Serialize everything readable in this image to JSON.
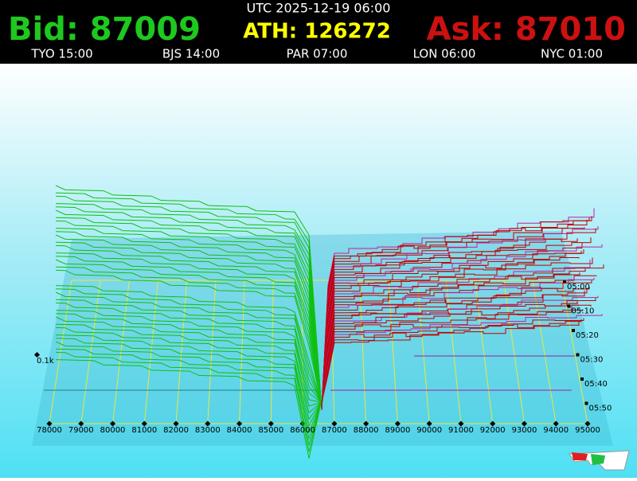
{
  "header": {
    "utc": "UTC 2025-12-19 06:00",
    "bid": "Bid: 87009",
    "ath": "ATH: 126272",
    "ask": "Ask: 87010",
    "clocks": [
      "TYO 15:00",
      "BJS 14:00",
      "PAR 07:00",
      "LON 06:00",
      "NYC 01:00"
    ]
  },
  "axis": {
    "price_labels": [
      "78000",
      "79000",
      "80000",
      "81000",
      "82000",
      "83000",
      "84000",
      "85000",
      "86000",
      "87000",
      "88000",
      "89000",
      "90000",
      "91000",
      "92000",
      "93000",
      "94000",
      "95000"
    ],
    "volume_label": "0.1k",
    "time_labels": [
      "05:00",
      "05:10",
      "05:20",
      "05:30",
      "05:40",
      "05:50"
    ]
  }
}
